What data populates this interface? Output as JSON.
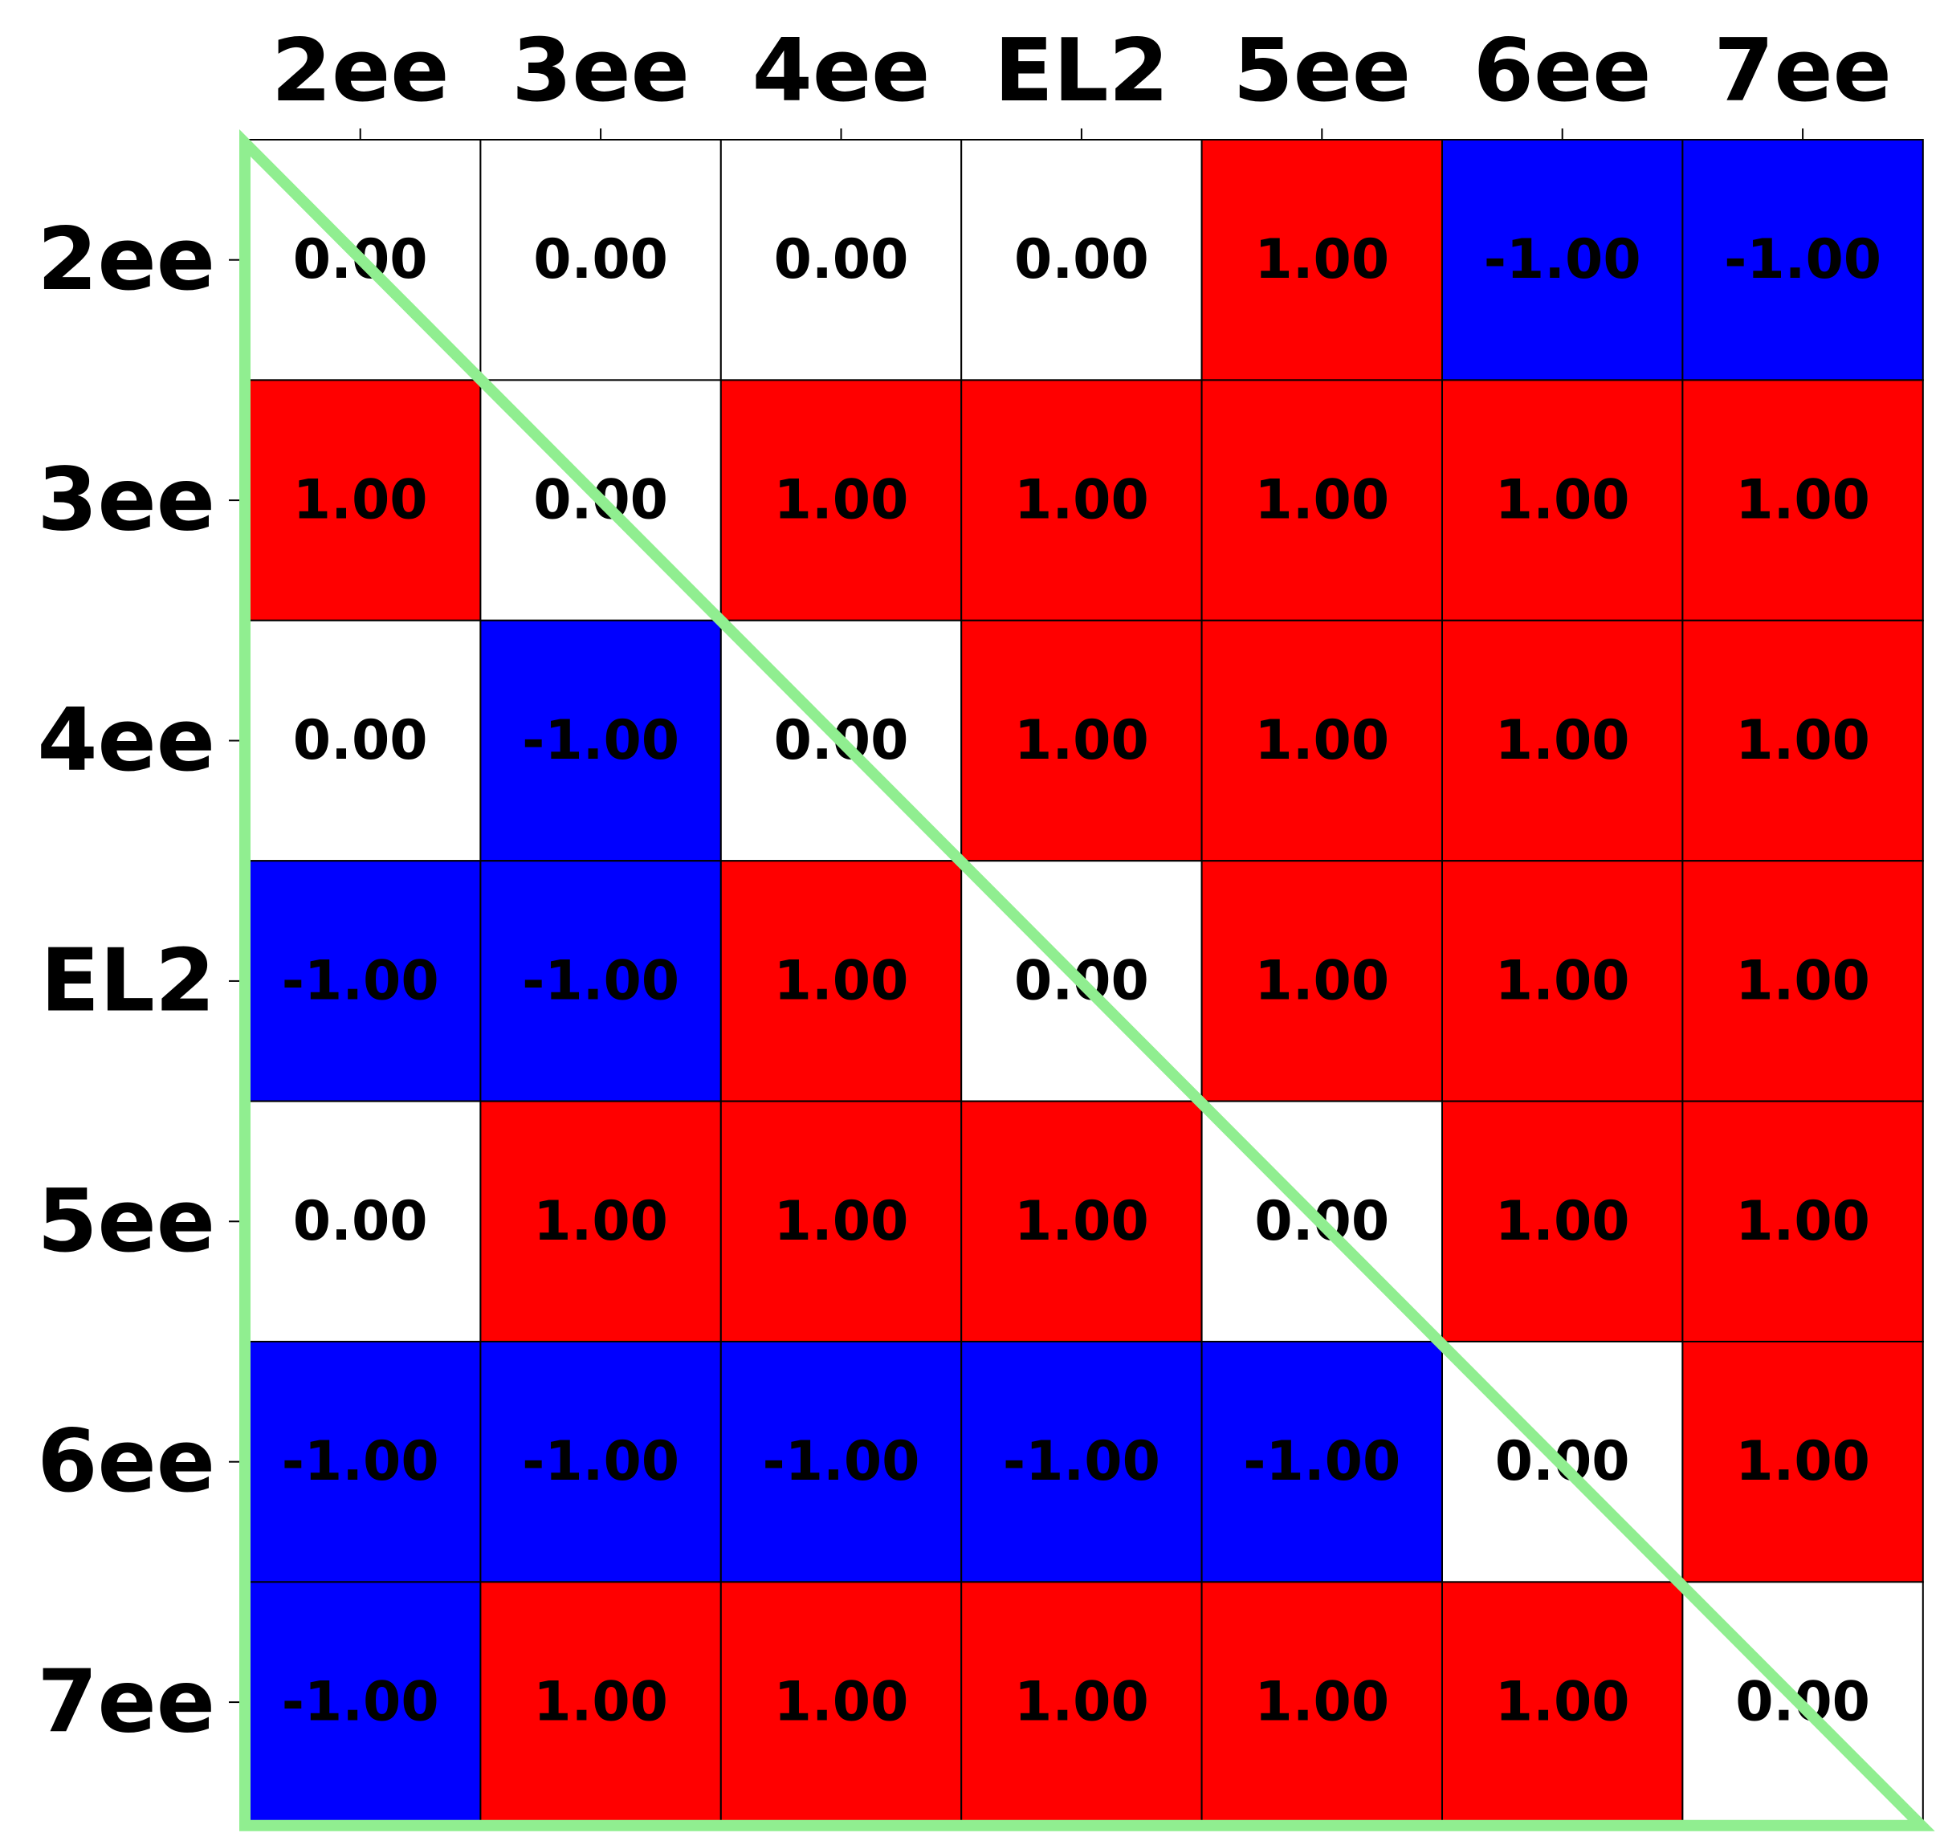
{
  "chart_data": {
    "type": "heatmap",
    "title": "",
    "xlabel": "",
    "ylabel": "",
    "x_categories": [
      "2ee",
      "3ee",
      "4ee",
      "EL2",
      "5ee",
      "6ee",
      "7ee"
    ],
    "y_categories": [
      "2ee",
      "3ee",
      "4ee",
      "EL2",
      "5ee",
      "6ee",
      "7ee"
    ],
    "x_tick_position": "top",
    "value_format": "2 decimals",
    "values": [
      [
        0,
        0,
        0,
        0,
        1,
        -1,
        -1
      ],
      [
        1,
        0,
        1,
        1,
        1,
        1,
        1
      ],
      [
        0,
        -1,
        0,
        1,
        1,
        1,
        1
      ],
      [
        -1,
        -1,
        1,
        0,
        1,
        1,
        1
      ],
      [
        0,
        1,
        1,
        1,
        0,
        1,
        1
      ],
      [
        -1,
        -1,
        -1,
        -1,
        -1,
        0,
        1
      ],
      [
        -1,
        1,
        1,
        1,
        1,
        1,
        0
      ]
    ],
    "colors": {
      "positive": "#ff0000",
      "zero": "#ffffff",
      "negative": "#0000ff",
      "cell_border": "#000000",
      "triangle_outline": "#90ee90"
    },
    "annotation": "lower-left triangle outline including the diagonal"
  }
}
